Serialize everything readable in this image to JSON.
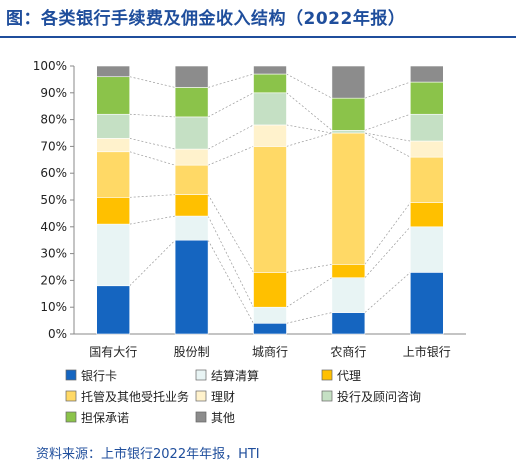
{
  "title": "图：各类银行手续费及佣金收入结构（2022年报）",
  "source": "资料来源：上市银行2022年年报，HTI",
  "chart_data": {
    "type": "bar",
    "stacked": true,
    "categories": [
      "国有大行",
      "股份制",
      "城商行",
      "农商行",
      "上市银行"
    ],
    "ylim": [
      0,
      100
    ],
    "yticks": [
      "0%",
      "10%",
      "20%",
      "30%",
      "40%",
      "50%",
      "60%",
      "70%",
      "80%",
      "90%",
      "100%"
    ],
    "grid": false,
    "legend_position": "bottom",
    "series": [
      {
        "name": "银行卡",
        "color": "#1565c0",
        "values": [
          18,
          35,
          4,
          8,
          23
        ]
      },
      {
        "name": "结算清算",
        "color": "#e8f4f4",
        "values": [
          23,
          9,
          6,
          13,
          17
        ]
      },
      {
        "name": "代理",
        "color": "#ffc000",
        "values": [
          10,
          8,
          13,
          5,
          9
        ]
      },
      {
        "name": "托管及其他受托业务",
        "color": "#ffd966",
        "values": [
          17,
          11,
          47,
          49,
          17
        ]
      },
      {
        "name": "理财",
        "color": "#fff2cc",
        "values": [
          5,
          6,
          8,
          0,
          6
        ]
      },
      {
        "name": "投行及顾问咨询",
        "color": "#c5e0c4",
        "values": [
          9,
          12,
          12,
          1,
          10
        ]
      },
      {
        "name": "担保承诺",
        "color": "#8bc34a",
        "values": [
          14,
          11,
          7,
          12,
          12
        ]
      },
      {
        "name": "其他",
        "color": "#8c8c8c",
        "values": [
          4,
          8,
          3,
          12,
          6
        ]
      }
    ]
  }
}
